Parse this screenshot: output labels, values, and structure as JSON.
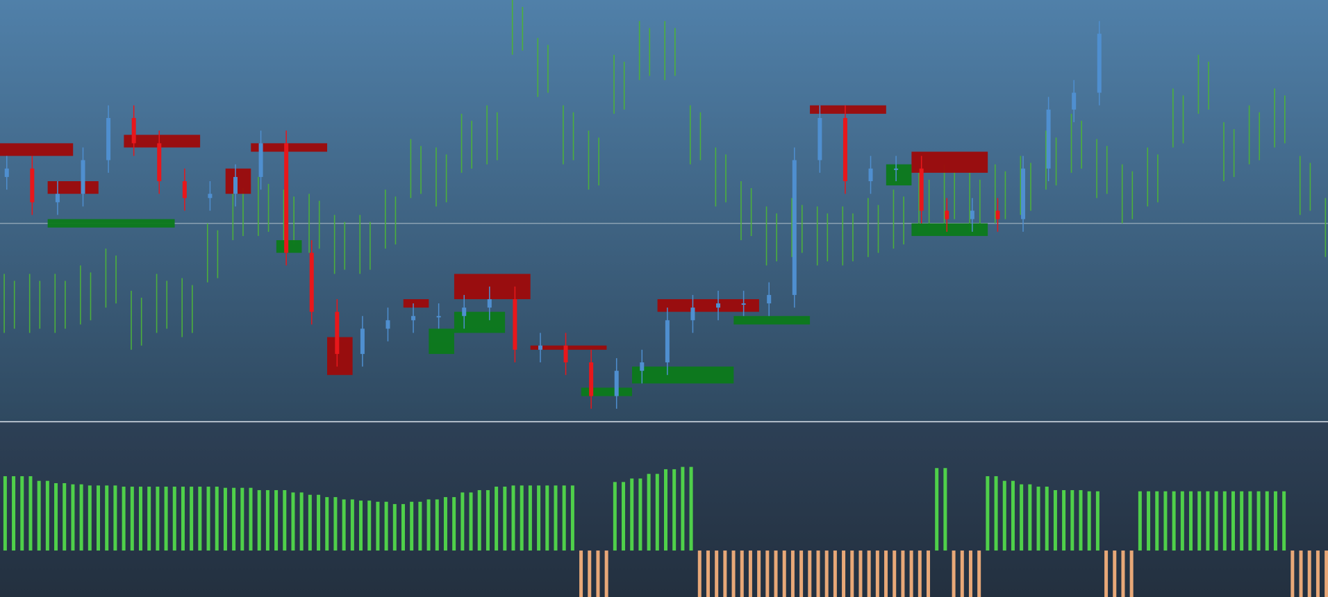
{
  "chart_data": {
    "type": "candlestick",
    "ylim": [
      0,
      100
    ],
    "up_color": "#4f8fd0",
    "down_color": "#e8171b",
    "open": [
      58,
      60,
      52,
      54,
      62,
      72,
      66,
      57,
      53,
      54,
      58,
      66,
      40,
      26,
      16,
      22,
      24,
      25,
      25,
      27,
      29,
      17,
      18,
      14,
      6,
      12,
      14,
      24,
      27,
      28,
      28,
      30,
      62,
      72,
      57,
      60,
      60,
      50,
      48,
      50,
      48,
      60,
      74,
      78
    ],
    "close": [
      60,
      52,
      54,
      62,
      72,
      66,
      57,
      53,
      54,
      58,
      66,
      40,
      26,
      16,
      22,
      24,
      25,
      25,
      27,
      29,
      17,
      18,
      14,
      6,
      12,
      14,
      24,
      27,
      28,
      28,
      30,
      62,
      72,
      57,
      60,
      60,
      50,
      48,
      50,
      48,
      60,
      74,
      78,
      92
    ],
    "high": [
      63,
      63,
      57,
      65,
      75,
      75,
      69,
      60,
      57,
      61,
      69,
      69,
      43,
      29,
      25,
      27,
      28,
      28,
      30,
      32,
      32,
      21,
      21,
      17,
      15,
      17,
      27,
      30,
      31,
      31,
      33,
      65,
      75,
      75,
      63,
      63,
      63,
      53,
      53,
      53,
      63,
      77,
      81,
      95
    ],
    "low": [
      55,
      49,
      49,
      51,
      59,
      63,
      54,
      50,
      50,
      51,
      55,
      37,
      23,
      13,
      13,
      19,
      21,
      22,
      22,
      24,
      14,
      14,
      11,
      3,
      3,
      9,
      11,
      21,
      24,
      25,
      25,
      27,
      59,
      54,
      54,
      57,
      47,
      45,
      45,
      45,
      45,
      57,
      71,
      75
    ],
    "overlay": {
      "color": "#4caf3c",
      "high": [
        35,
        35,
        35,
        37,
        41,
        31,
        35,
        34,
        47,
        57,
        58,
        55,
        54,
        49,
        49,
        55,
        67,
        65,
        73,
        75,
        100,
        91,
        75,
        69,
        87,
        95,
        95,
        75,
        65,
        57,
        51,
        53,
        51,
        51,
        53,
        55,
        59,
        61,
        59,
        61,
        63,
        69,
        73,
        67,
        61,
        65,
        79,
        87,
        71,
        75,
        79,
        63,
        53
      ],
      "low": [
        21,
        21,
        21,
        23,
        27,
        17,
        21,
        20,
        33,
        43,
        44,
        41,
        40,
        35,
        35,
        41,
        53,
        51,
        59,
        61,
        87,
        77,
        61,
        55,
        73,
        81,
        81,
        61,
        51,
        43,
        37,
        39,
        37,
        37,
        39,
        41,
        45,
        47,
        45,
        47,
        49,
        55,
        59,
        53,
        47,
        51,
        65,
        73,
        57,
        61,
        65,
        49,
        39
      ]
    },
    "zones": [
      {
        "start": 0,
        "end": 2,
        "top": 66,
        "bottom": 63,
        "color": "#9e0a0a"
      },
      {
        "start": 5,
        "end": 7,
        "top": 68,
        "bottom": 65,
        "color": "#9e0a0a"
      },
      {
        "start": 2,
        "end": 3,
        "top": 57,
        "bottom": 54,
        "color": "#9e0a0a"
      },
      {
        "start": 10,
        "end": 12,
        "top": 66,
        "bottom": 64,
        "color": "#9e0a0a"
      },
      {
        "start": 9,
        "end": 9,
        "top": 60,
        "bottom": 54,
        "color": "#9e0a0a"
      },
      {
        "start": 13,
        "end": 13,
        "top": 20,
        "bottom": 11,
        "color": "#9e0a0a"
      },
      {
        "start": 18,
        "end": 20,
        "top": 35,
        "bottom": 29,
        "color": "#9e0a0a"
      },
      {
        "start": 16,
        "end": 16,
        "top": 29,
        "bottom": 27,
        "color": "#9e0a0a"
      },
      {
        "start": 32,
        "end": 34,
        "top": 75,
        "bottom": 73,
        "color": "#9e0a0a"
      },
      {
        "start": 36,
        "end": 38,
        "top": 64,
        "bottom": 59,
        "color": "#9e0a0a"
      },
      {
        "start": 26,
        "end": 29,
        "top": 29,
        "bottom": 26,
        "color": "#9e0a0a"
      },
      {
        "start": 21,
        "end": 23,
        "top": 18,
        "bottom": 17,
        "color": "#9e0a0a"
      },
      {
        "start": 2,
        "end": 6,
        "top": 48,
        "bottom": 46,
        "color": "#0c7a1a"
      },
      {
        "start": 11,
        "end": 11,
        "top": 43,
        "bottom": 40,
        "color": "#0c7a1a"
      },
      {
        "start": 18,
        "end": 19,
        "top": 26,
        "bottom": 21,
        "color": "#0c7a1a"
      },
      {
        "start": 17,
        "end": 17,
        "top": 22,
        "bottom": 16,
        "color": "#0c7a1a"
      },
      {
        "start": 25,
        "end": 28,
        "top": 13,
        "bottom": 9,
        "color": "#0c7a1a"
      },
      {
        "start": 23,
        "end": 24,
        "top": 8,
        "bottom": 6,
        "color": "#0c7a1a"
      },
      {
        "start": 29,
        "end": 31,
        "top": 25,
        "bottom": 23,
        "color": "#0c7a1a"
      },
      {
        "start": 36,
        "end": 38,
        "top": 47,
        "bottom": 44,
        "color": "#0c7a1a"
      },
      {
        "start": 35,
        "end": 35,
        "top": 61,
        "bottom": 56,
        "color": "#0c7a1a"
      }
    ],
    "price_line": 47,
    "indicator": {
      "type": "bar",
      "ylim": [
        -40,
        110
      ],
      "up_color": "#4fd04a",
      "down_color": "#e8a878",
      "values": [
        64,
        64,
        60,
        58,
        57,
        56,
        56,
        55,
        55,
        55,
        55,
        55,
        55,
        54,
        54,
        52,
        52,
        50,
        48,
        46,
        44,
        43,
        42,
        40,
        42,
        44,
        46,
        50,
        52,
        55,
        56,
        56,
        56,
        56,
        -40,
        -40,
        59,
        62,
        66,
        70,
        72,
        -40,
        -40,
        -40,
        -40,
        -40,
        -40,
        -40,
        -40,
        -40,
        -40,
        -40,
        -40,
        -40,
        -40,
        71,
        -40,
        -40,
        64,
        60,
        57,
        55,
        52,
        52,
        51,
        -40,
        -40,
        51,
        51,
        51,
        51,
        51,
        51,
        51,
        51,
        51,
        -40,
        -40,
        -40
      ]
    }
  }
}
